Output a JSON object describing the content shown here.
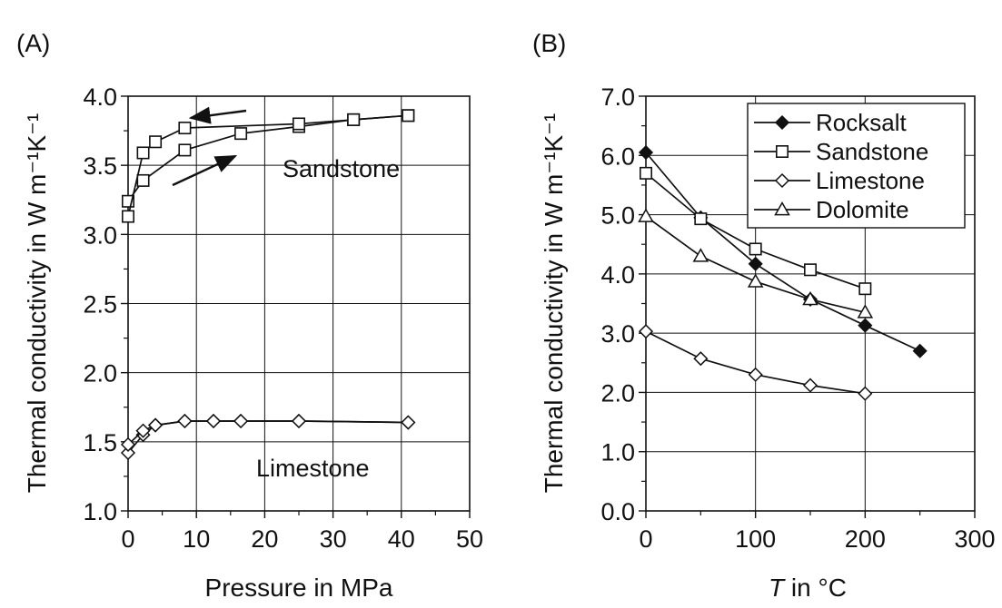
{
  "chart_data": [
    {
      "panel_label": "(A)",
      "type": "line",
      "xlabel": "Pressure in MPa",
      "ylabel": "Thermal conductivity in W m⁻¹K⁻¹",
      "xlim": [
        0,
        50
      ],
      "ylim": [
        1.0,
        4.0
      ],
      "xticks": [
        0,
        10,
        20,
        30,
        40,
        50
      ],
      "xtick_labels": [
        "0",
        "10",
        "20",
        "30",
        "40",
        "50"
      ],
      "yticks": [
        1.0,
        1.5,
        2.0,
        2.5,
        3.0,
        3.5,
        4.0
      ],
      "ytick_labels": [
        "1.0",
        "1.5",
        "2.0",
        "2.5",
        "3.0",
        "3.5",
        "4.0"
      ],
      "grid": true,
      "annotations": [
        "Sandstone",
        "Limestone"
      ],
      "series": [
        {
          "name": "Sandstone",
          "marker": "square",
          "loading": {
            "x": [
              0,
              2.2,
              8.3,
              16.5,
              25,
              33,
              41
            ],
            "y": [
              3.24,
              3.39,
              3.61,
              3.73,
              3.78,
              3.83,
              3.86
            ]
          },
          "unloading": {
            "x": [
              0,
              2.2,
              4,
              8.3,
              25,
              33,
              41
            ],
            "y": [
              3.13,
              3.59,
              3.67,
              3.77,
              3.8,
              3.83,
              3.86
            ]
          }
        },
        {
          "name": "Limestone",
          "marker": "diamond",
          "loading": {
            "x": [
              0,
              2.2,
              4,
              8.3,
              12.5,
              16.5,
              25,
              41
            ],
            "y": [
              1.42,
              1.55,
              1.62,
              1.65,
              1.65,
              1.65,
              1.65,
              1.64
            ]
          },
          "unloading": {
            "x": [
              0,
              2.2,
              4,
              8.3,
              12.5,
              16.5,
              25,
              41
            ],
            "y": [
              1.48,
              1.58,
              1.62,
              1.65,
              1.65,
              1.65,
              1.65,
              1.64
            ]
          }
        }
      ]
    },
    {
      "panel_label": "(B)",
      "type": "line",
      "xlabel_italic": "T",
      "xlabel_rest": " in °C",
      "ylabel": "Thermal conductivity in W m⁻¹K⁻¹",
      "xlim": [
        0,
        300
      ],
      "ylim": [
        0.0,
        7.0
      ],
      "xticks": [
        0,
        100,
        200,
        300
      ],
      "xtick_labels": [
        "0",
        "100",
        "200",
        "300"
      ],
      "yticks": [
        0,
        1,
        2,
        3,
        4,
        5,
        6,
        7
      ],
      "ytick_labels": [
        "0.0",
        "1.0",
        "2.0",
        "3.0",
        "4.0",
        "5.0",
        "6.0",
        "7.0"
      ],
      "grid": true,
      "legend_position": "top-right",
      "series": [
        {
          "name": "Rocksalt",
          "marker": "diamond-filled",
          "x": [
            0,
            50,
            100,
            150,
            200,
            250
          ],
          "y": [
            6.05,
            4.95,
            4.17,
            3.57,
            3.13,
            2.7
          ]
        },
        {
          "name": "Sandstone",
          "marker": "square",
          "x": [
            0,
            50,
            100,
            150,
            200
          ],
          "y": [
            5.7,
            4.93,
            4.42,
            4.07,
            3.75
          ]
        },
        {
          "name": "Limestone",
          "marker": "diamond",
          "x": [
            0,
            50,
            100,
            150,
            200
          ],
          "y": [
            3.03,
            2.57,
            2.3,
            2.12,
            1.98
          ]
        },
        {
          "name": "Dolomite",
          "marker": "triangle",
          "x": [
            0,
            50,
            100,
            150,
            200
          ],
          "y": [
            4.97,
            4.3,
            3.87,
            3.57,
            3.35
          ]
        }
      ]
    }
  ]
}
